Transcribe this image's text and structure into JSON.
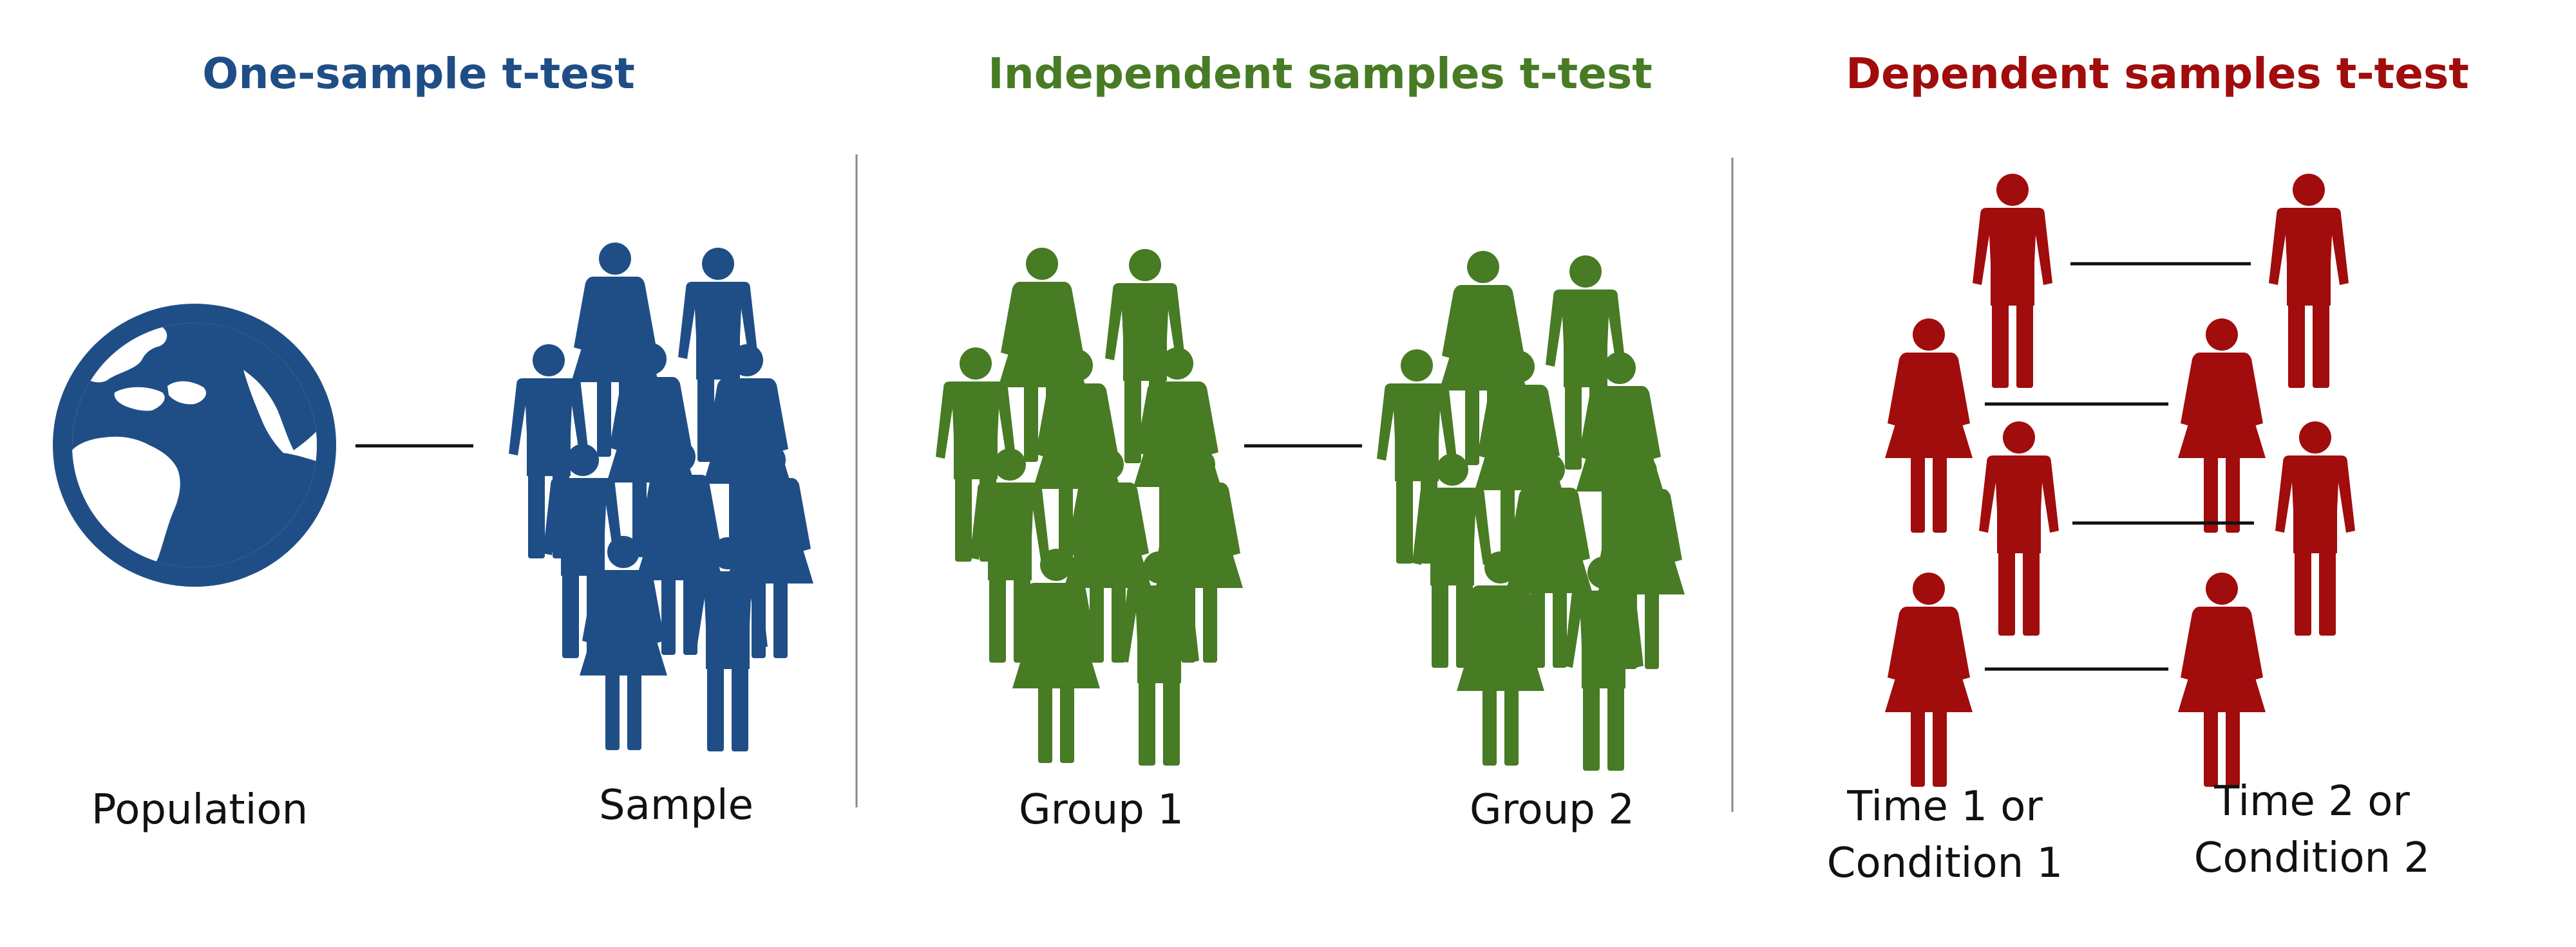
{
  "panels": [
    {
      "title": "One-sample t-test",
      "color": "#1f4e87",
      "left_label": "Population",
      "right_label": "Sample",
      "left_icon": "globe-icon",
      "right_icon": "crowd-icon"
    },
    {
      "title": "Independent samples t-test",
      "color": "#477b24",
      "left_label": "Group 1",
      "right_label": "Group 2",
      "left_icon": "crowd-icon",
      "right_icon": "crowd-icon"
    },
    {
      "title": "Dependent samples t-test",
      "color": "#a10c0c",
      "left_label_line1": "Time 1 or",
      "left_label_line2": "Condition 1",
      "right_label_line1": "Time 2 or",
      "right_label_line2": "Condition 2",
      "person_icon": "person-icon"
    }
  ],
  "divider_color": "#888888"
}
